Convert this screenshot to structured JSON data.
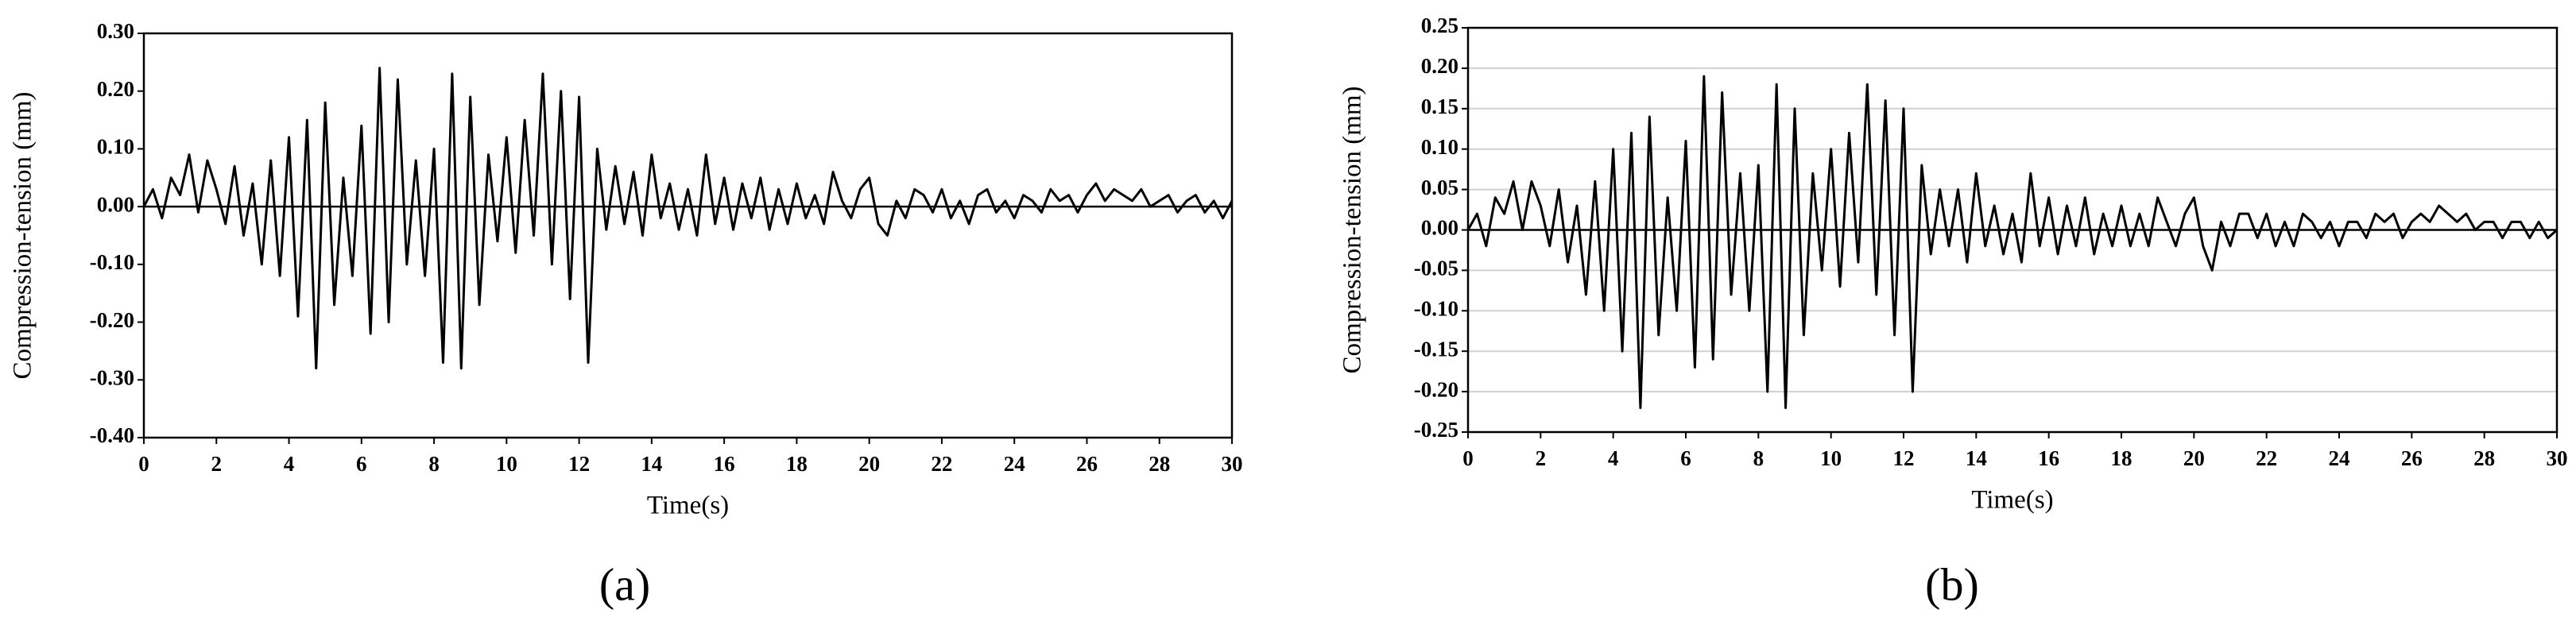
{
  "chart_data": [
    {
      "type": "line",
      "caption": "(a)",
      "xlabel": "Time(s)",
      "ylabel": "Compression-tension (mm)",
      "color": "#000000",
      "grid": false,
      "xlim": [
        0,
        30
      ],
      "xticks": [
        0,
        2,
        4,
        6,
        8,
        10,
        12,
        14,
        16,
        18,
        20,
        22,
        24,
        26,
        28,
        30
      ],
      "ylim": [
        -0.4,
        0.3
      ],
      "yticks": [
        {
          "value": -0.4,
          "label": "-0.40"
        },
        {
          "value": -0.3,
          "label": "-0.30"
        },
        {
          "value": -0.2,
          "label": "-0.20"
        },
        {
          "value": -0.1,
          "label": "-0.10"
        },
        {
          "value": 0,
          "label": "0.00"
        },
        {
          "value": 0.1,
          "label": "0.10"
        },
        {
          "value": 0.2,
          "label": "0.20"
        },
        {
          "value": 0.3,
          "label": "0.30"
        }
      ],
      "x": [
        0,
        0.25,
        0.5,
        0.75,
        1,
        1.25,
        1.5,
        1.75,
        2,
        2.25,
        2.5,
        2.75,
        3,
        3.25,
        3.5,
        3.75,
        4,
        4.25,
        4.5,
        4.75,
        5,
        5.25,
        5.5,
        5.75,
        6,
        6.25,
        6.5,
        6.75,
        7,
        7.25,
        7.5,
        7.75,
        8,
        8.25,
        8.5,
        8.75,
        9,
        9.25,
        9.5,
        9.75,
        10,
        10.25,
        10.5,
        10.75,
        11,
        11.25,
        11.5,
        11.75,
        12,
        12.25,
        12.5,
        12.75,
        13,
        13.25,
        13.5,
        13.75,
        14,
        14.25,
        14.5,
        14.75,
        15,
        15.25,
        15.5,
        15.75,
        16,
        16.25,
        16.5,
        16.75,
        17,
        17.25,
        17.5,
        17.75,
        18,
        18.25,
        18.5,
        18.75,
        19,
        19.25,
        19.5,
        19.75,
        20,
        20.25,
        20.5,
        20.75,
        21,
        21.25,
        21.5,
        21.75,
        22,
        22.25,
        22.5,
        22.75,
        23,
        23.25,
        23.5,
        23.75,
        24,
        24.25,
        24.5,
        24.75,
        25,
        25.25,
        25.5,
        25.75,
        26,
        26.25,
        26.5,
        26.75,
        27,
        27.25,
        27.5,
        27.75,
        28,
        28.25,
        28.5,
        28.75,
        29,
        29.25,
        29.5,
        29.75,
        30
      ],
      "values": [
        0,
        0.03,
        -0.02,
        0.05,
        0.02,
        0.09,
        -0.01,
        0.08,
        0.03,
        -0.03,
        0.07,
        -0.05,
        0.04,
        -0.1,
        0.08,
        -0.12,
        0.12,
        -0.19,
        0.15,
        -0.28,
        0.18,
        -0.17,
        0.05,
        -0.12,
        0.14,
        -0.22,
        0.24,
        -0.2,
        0.22,
        -0.1,
        0.08,
        -0.12,
        0.1,
        -0.27,
        0.23,
        -0.28,
        0.19,
        -0.17,
        0.09,
        -0.06,
        0.12,
        -0.08,
        0.15,
        -0.05,
        0.23,
        -0.1,
        0.2,
        -0.16,
        0.19,
        -0.27,
        0.1,
        -0.04,
        0.07,
        -0.03,
        0.06,
        -0.05,
        0.09,
        -0.02,
        0.04,
        -0.04,
        0.03,
        -0.05,
        0.09,
        -0.03,
        0.05,
        -0.04,
        0.04,
        -0.02,
        0.05,
        -0.04,
        0.03,
        -0.03,
        0.04,
        -0.02,
        0.02,
        -0.03,
        0.06,
        0.01,
        -0.02,
        0.03,
        0.05,
        -0.03,
        -0.05,
        0.01,
        -0.02,
        0.03,
        0.02,
        -0.01,
        0.03,
        -0.02,
        0.01,
        -0.03,
        0.02,
        0.03,
        -0.01,
        0.01,
        -0.02,
        0.02,
        0.01,
        -0.01,
        0.03,
        0.01,
        0.02,
        -0.01,
        0.02,
        0.04,
        0.01,
        0.03,
        0.02,
        0.01,
        0.03,
        0,
        0.01,
        0.02,
        -0.01,
        0.01,
        0.02,
        -0.01,
        0.01,
        -0.02,
        0.01
      ]
    },
    {
      "type": "line",
      "caption": "(b)",
      "xlabel": "Time(s)",
      "ylabel": "Compression-tension (mm)",
      "color": "#000000",
      "grid": true,
      "xlim": [
        0,
        30
      ],
      "xticks": [
        0,
        2,
        4,
        6,
        8,
        10,
        12,
        14,
        16,
        18,
        20,
        22,
        24,
        26,
        28,
        30
      ],
      "ylim": [
        -0.25,
        0.25
      ],
      "yticks": [
        {
          "value": -0.25,
          "label": "-0.25"
        },
        {
          "value": -0.2,
          "label": "-0.20"
        },
        {
          "value": -0.15,
          "label": "-0.15"
        },
        {
          "value": -0.1,
          "label": "-0.10"
        },
        {
          "value": -0.05,
          "label": "-0.05"
        },
        {
          "value": 0,
          "label": "0.00"
        },
        {
          "value": 0.05,
          "label": "0.05"
        },
        {
          "value": 0.1,
          "label": "0.10"
        },
        {
          "value": 0.15,
          "label": "0.15"
        },
        {
          "value": 0.2,
          "label": "0.20"
        },
        {
          "value": 0.25,
          "label": "0.25"
        }
      ],
      "x": [
        0,
        0.25,
        0.5,
        0.75,
        1,
        1.25,
        1.5,
        1.75,
        2,
        2.25,
        2.5,
        2.75,
        3,
        3.25,
        3.5,
        3.75,
        4,
        4.25,
        4.5,
        4.75,
        5,
        5.25,
        5.5,
        5.75,
        6,
        6.25,
        6.5,
        6.75,
        7,
        7.25,
        7.5,
        7.75,
        8,
        8.25,
        8.5,
        8.75,
        9,
        9.25,
        9.5,
        9.75,
        10,
        10.25,
        10.5,
        10.75,
        11,
        11.25,
        11.5,
        11.75,
        12,
        12.25,
        12.5,
        12.75,
        13,
        13.25,
        13.5,
        13.75,
        14,
        14.25,
        14.5,
        14.75,
        15,
        15.25,
        15.5,
        15.75,
        16,
        16.25,
        16.5,
        16.75,
        17,
        17.25,
        17.5,
        17.75,
        18,
        18.25,
        18.5,
        18.75,
        19,
        19.25,
        19.5,
        19.75,
        20,
        20.25,
        20.5,
        20.75,
        21,
        21.25,
        21.5,
        21.75,
        22,
        22.25,
        22.5,
        22.75,
        23,
        23.25,
        23.5,
        23.75,
        24,
        24.25,
        24.5,
        24.75,
        25,
        25.25,
        25.5,
        25.75,
        26,
        26.25,
        26.5,
        26.75,
        27,
        27.25,
        27.5,
        27.75,
        28,
        28.25,
        28.5,
        28.75,
        29,
        29.25,
        29.5,
        29.75,
        30
      ],
      "values": [
        0,
        0.02,
        -0.02,
        0.04,
        0.02,
        0.06,
        0,
        0.06,
        0.03,
        -0.02,
        0.05,
        -0.04,
        0.03,
        -0.08,
        0.06,
        -0.1,
        0.1,
        -0.15,
        0.12,
        -0.22,
        0.14,
        -0.13,
        0.04,
        -0.1,
        0.11,
        -0.17,
        0.19,
        -0.16,
        0.17,
        -0.08,
        0.07,
        -0.1,
        0.08,
        -0.2,
        0.18,
        -0.22,
        0.15,
        -0.13,
        0.07,
        -0.05,
        0.1,
        -0.07,
        0.12,
        -0.04,
        0.18,
        -0.08,
        0.16,
        -0.13,
        0.15,
        -0.2,
        0.08,
        -0.03,
        0.05,
        -0.02,
        0.05,
        -0.04,
        0.07,
        -0.02,
        0.03,
        -0.03,
        0.02,
        -0.04,
        0.07,
        -0.02,
        0.04,
        -0.03,
        0.03,
        -0.02,
        0.04,
        -0.03,
        0.02,
        -0.02,
        0.03,
        -0.02,
        0.02,
        -0.02,
        0.04,
        0.01,
        -0.02,
        0.02,
        0.04,
        -0.02,
        -0.05,
        0.01,
        -0.02,
        0.02,
        0.02,
        -0.01,
        0.02,
        -0.02,
        0.01,
        -0.02,
        0.02,
        0.01,
        -0.01,
        0.01,
        -0.02,
        0.01,
        0.01,
        -0.01,
        0.02,
        0.01,
        0.02,
        -0.01,
        0.01,
        0.02,
        0.01,
        0.03,
        0.02,
        0.01,
        0.02,
        0,
        0.01,
        0.01,
        -0.01,
        0.01,
        0.01,
        -0.01,
        0.01,
        -0.01,
        0
      ]
    }
  ]
}
